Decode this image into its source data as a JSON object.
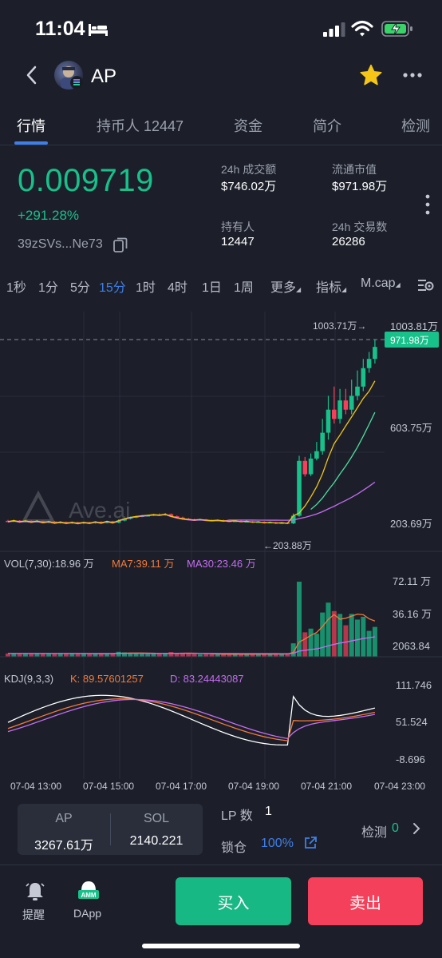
{
  "status_bar": {
    "time": "11:04"
  },
  "header": {
    "token_name": "AP"
  },
  "tabs": [
    {
      "label": "行情"
    },
    {
      "label": "持币人 12447"
    },
    {
      "label": "资金"
    },
    {
      "label": "简介"
    },
    {
      "label": "检测"
    }
  ],
  "price_panel": {
    "price": "0.009719",
    "change": "+291.28%",
    "address": "39zSVs...Ne73",
    "stats": [
      {
        "label": "24h 成交额",
        "value": "$746.02万"
      },
      {
        "label": "流通市值",
        "value": "$971.98万"
      },
      {
        "label": "持有人",
        "value": "12447"
      },
      {
        "label": "24h 交易数",
        "value": "26286"
      }
    ]
  },
  "intervals": {
    "items": [
      "1秒",
      "1分",
      "5分",
      "15分",
      "1时",
      "4时",
      "1日",
      "1周"
    ],
    "active": "15分",
    "more": "更多",
    "indicators": "指标",
    "mcap": "M.cap"
  },
  "colors": {
    "up": "#18c08a",
    "down": "#f4405a",
    "accent": "#3f7fe8",
    "ma7": "#f2c511",
    "ma25": "#4de0a0",
    "ma99": "#c56cf0"
  },
  "chart_data": {
    "type": "candlestick",
    "watermark": "Ave.ai",
    "price_axis": [
      "1003.81万",
      "603.75万",
      "203.69万"
    ],
    "current_label": "971.98万",
    "high_marker": "1003.71万→",
    "low_marker": "←203.88万",
    "y_range": [
      203.69,
      1003.81
    ],
    "candles": [
      [
        218,
        215,
        222,
        212
      ],
      [
        215,
        219,
        223,
        213
      ],
      [
        219,
        214,
        221,
        211
      ],
      [
        214,
        218,
        222,
        212
      ],
      [
        218,
        213,
        220,
        210
      ],
      [
        213,
        217,
        221,
        211
      ],
      [
        217,
        211,
        219,
        209
      ],
      [
        211,
        215,
        218,
        208
      ],
      [
        215,
        209,
        217,
        207
      ],
      [
        209,
        213,
        216,
        206
      ],
      [
        213,
        208,
        215,
        205
      ],
      [
        208,
        212,
        215,
        205
      ],
      [
        212,
        207,
        214,
        204
      ],
      [
        207,
        212,
        214,
        204
      ],
      [
        212,
        208,
        214,
        206
      ],
      [
        208,
        214,
        216,
        206
      ],
      [
        214,
        209,
        216,
        207
      ],
      [
        209,
        216,
        218,
        207
      ],
      [
        216,
        210,
        218,
        208
      ],
      [
        210,
        219,
        224,
        208
      ],
      [
        219,
        227,
        230,
        216
      ],
      [
        227,
        233,
        236,
        224
      ],
      [
        233,
        237,
        240,
        230
      ],
      [
        237,
        240,
        243,
        234
      ],
      [
        240,
        242,
        245,
        237
      ],
      [
        242,
        245,
        248,
        239
      ],
      [
        245,
        243,
        250,
        240
      ],
      [
        243,
        247,
        252,
        240
      ],
      [
        247,
        238,
        250,
        235
      ],
      [
        238,
        232,
        241,
        229
      ],
      [
        232,
        227,
        236,
        224
      ],
      [
        227,
        224,
        230,
        221
      ],
      [
        224,
        222,
        227,
        219
      ],
      [
        222,
        224,
        227,
        220
      ],
      [
        224,
        221,
        226,
        218
      ],
      [
        221,
        219,
        223,
        216
      ],
      [
        219,
        221,
        224,
        217
      ],
      [
        221,
        218,
        223,
        215
      ],
      [
        218,
        216,
        221,
        213
      ],
      [
        216,
        218,
        220,
        214
      ],
      [
        218,
        214,
        221,
        212
      ],
      [
        214,
        216,
        219,
        212
      ],
      [
        216,
        212,
        218,
        210
      ],
      [
        212,
        214,
        217,
        210
      ],
      [
        214,
        209,
        216,
        207
      ],
      [
        209,
        212,
        215,
        207
      ],
      [
        212,
        208,
        214,
        205
      ],
      [
        208,
        210,
        213,
        204
      ],
      [
        210,
        207,
        213,
        204
      ],
      [
        207,
        240,
        250,
        204
      ],
      [
        240,
        478,
        500,
        236
      ],
      [
        478,
        420,
        495,
        410
      ],
      [
        420,
        488,
        510,
        412
      ],
      [
        488,
        520,
        560,
        480
      ],
      [
        520,
        600,
        660,
        505
      ],
      [
        600,
        700,
        760,
        570
      ],
      [
        700,
        660,
        800,
        640
      ],
      [
        660,
        740,
        790,
        640
      ],
      [
        740,
        700,
        790,
        680
      ],
      [
        700,
        760,
        830,
        680
      ],
      [
        760,
        800,
        870,
        740
      ],
      [
        800,
        880,
        920,
        780
      ],
      [
        880,
        920,
        950,
        860
      ],
      [
        920,
        972,
        1004,
        900
      ]
    ],
    "ma7_from": 50,
    "ma25_from": 52,
    "ma99_from": 38,
    "x_labels": [
      "07-04 13:00",
      "07-04 15:00",
      "07-04 17:00",
      "07-04 19:00",
      "07-04 21:00",
      "07-04 23:00"
    ],
    "volume": {
      "legend": "VOL(7,30):18.96 万",
      "ma7_label": "MA7:39.11 万",
      "ma30_label": "MA30:23.46 万",
      "axis": [
        "72.11 万",
        "36.16 万",
        "2063.84"
      ],
      "max": 72.11
    },
    "kdj": {
      "legend": "KDJ(9,3,3)",
      "k_label": "K: 89.57601257",
      "d_label": "D: 83.24443087",
      "axis": [
        "111.746",
        "51.524",
        "-8.696"
      ],
      "range": [
        -8.696,
        111.746
      ]
    }
  },
  "pool": {
    "left_label": "AP",
    "left_value": "3267.61万",
    "right_label": "SOL",
    "right_value": "2140.221",
    "lp_label": "LP 数",
    "lp_value": "1",
    "lock_label": "锁仓",
    "lock_value": "100%",
    "check_label": "检测",
    "check_count": "0"
  },
  "footer": {
    "remind": "提醒",
    "dapp": "DApp",
    "dapp_badge": "AMM",
    "buy": "买入",
    "sell": "卖出"
  }
}
